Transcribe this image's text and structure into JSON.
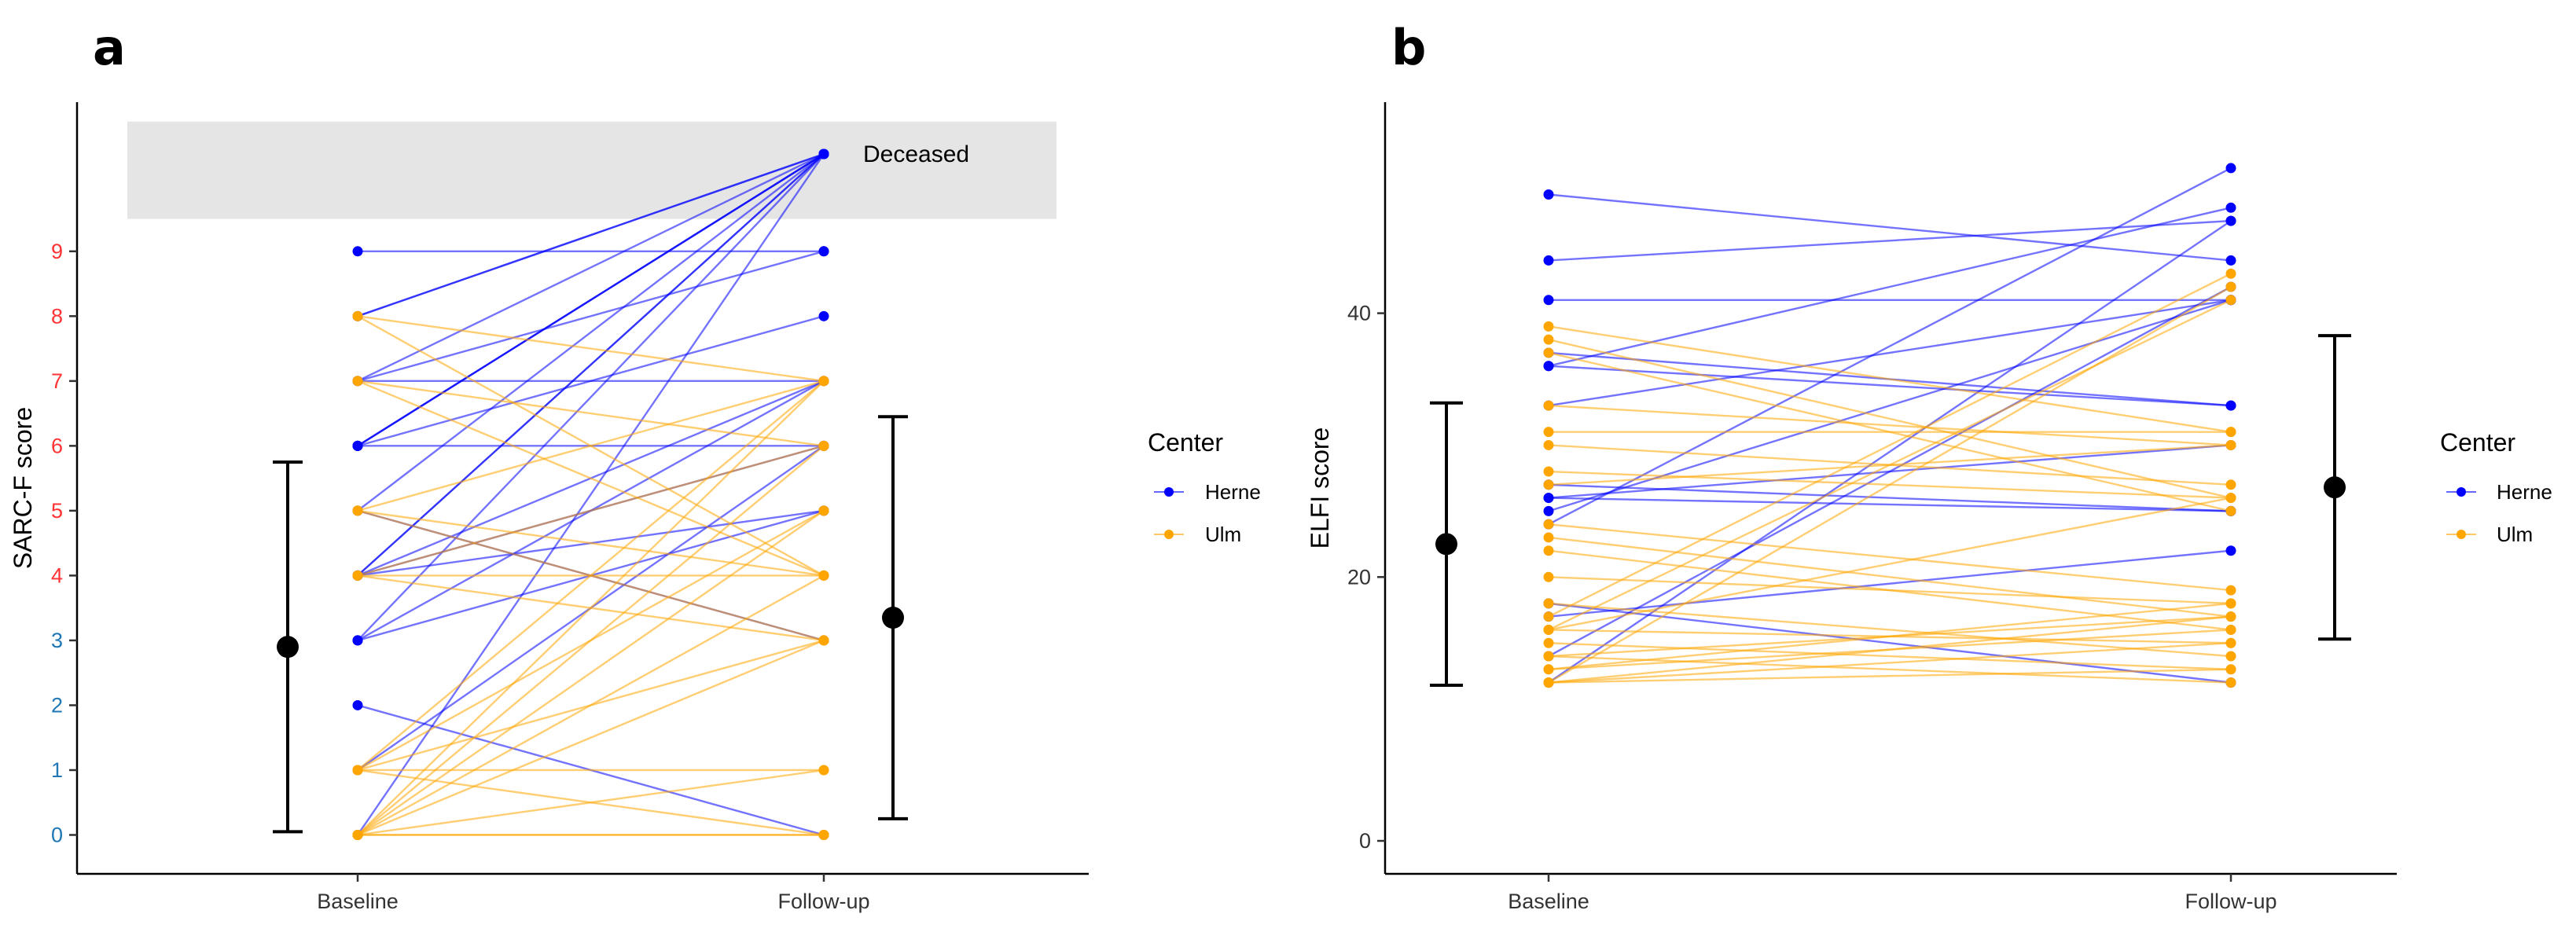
{
  "chart_data": [
    {
      "panel": "a",
      "type": "line",
      "xlabel": "",
      "ylabel": "SARC-F score",
      "categories": [
        "Baseline",
        "Follow-up"
      ],
      "ylim": [
        -0.6,
        11.3
      ],
      "yticks": [
        0,
        1,
        2,
        3,
        4,
        5,
        6,
        7,
        8,
        9
      ],
      "ytick_colors": {
        "0-3": "#1f77b4",
        "4-9": "#ff3333"
      },
      "grid": false,
      "deceased_band": {
        "label": "Deceased",
        "range": [
          9.5,
          11
        ],
        "value": 10.5
      },
      "legend": {
        "title": "Center",
        "position": "right",
        "entries": [
          {
            "name": "Herne",
            "color": "#0000ff"
          },
          {
            "name": "Ulm",
            "color": "#ffa500"
          }
        ]
      },
      "series": [
        {
          "name": "Herne",
          "color": "#0000ff",
          "pairs": [
            [
              9,
              9
            ],
            [
              8,
              10.5
            ],
            [
              8,
              10.5
            ],
            [
              7,
              10.5
            ],
            [
              7,
              7
            ],
            [
              7,
              9
            ],
            [
              6,
              10.5
            ],
            [
              6,
              10.5
            ],
            [
              6,
              6
            ],
            [
              6,
              8
            ],
            [
              6,
              10.5
            ],
            [
              5,
              10.5
            ],
            [
              4,
              10.5
            ],
            [
              4,
              6
            ],
            [
              4,
              5
            ],
            [
              4,
              7
            ],
            [
              3,
              5
            ],
            [
              3,
              7
            ],
            [
              2,
              0
            ],
            [
              1,
              6
            ],
            [
              0,
              10.5
            ],
            [
              5,
              3
            ],
            [
              4,
              10.5
            ],
            [
              3,
              10.5
            ]
          ]
        },
        {
          "name": "Ulm",
          "color": "#ffa500",
          "pairs": [
            [
              8,
              7
            ],
            [
              8,
              4
            ],
            [
              7,
              6
            ],
            [
              7,
              4
            ],
            [
              5,
              7
            ],
            [
              5,
              4
            ],
            [
              4,
              3
            ],
            [
              4,
              6
            ],
            [
              4,
              4
            ],
            [
              1,
              7
            ],
            [
              1,
              3
            ],
            [
              1,
              0
            ],
            [
              1,
              5
            ],
            [
              0,
              5
            ],
            [
              0,
              4
            ],
            [
              0,
              6
            ],
            [
              0,
              3
            ],
            [
              0,
              1
            ],
            [
              0,
              0
            ],
            [
              0,
              0
            ],
            [
              0,
              7
            ],
            [
              5,
              3
            ],
            [
              1,
              1
            ]
          ]
        }
      ],
      "errorbars": [
        {
          "x": "Baseline",
          "mean": 2.9,
          "low": 0.05,
          "high": 5.75
        },
        {
          "x": "Follow-up",
          "mean": 3.35,
          "low": 0.25,
          "high": 6.45
        }
      ]
    },
    {
      "panel": "b",
      "type": "line",
      "xlabel": "",
      "ylabel": "ELFI score",
      "categories": [
        "Baseline",
        "Follow-up"
      ],
      "ylim": [
        -2.5,
        56
      ],
      "yticks": [
        0,
        20,
        40
      ],
      "grid": false,
      "legend": {
        "title": "Center",
        "position": "right",
        "entries": [
          {
            "name": "Herne",
            "color": "#0000ff"
          },
          {
            "name": "Ulm",
            "color": "#ffa500"
          }
        ]
      },
      "series": [
        {
          "name": "Herne",
          "color": "#0000ff",
          "pairs": [
            [
              49,
              44
            ],
            [
              44,
              47
            ],
            [
              41,
              41
            ],
            [
              37,
              33
            ],
            [
              36,
              33
            ],
            [
              36,
              48
            ],
            [
              33,
              41
            ],
            [
              27,
              25
            ],
            [
              26,
              30
            ],
            [
              25,
              41
            ],
            [
              24,
              51
            ],
            [
              18,
              12
            ],
            [
              17,
              22
            ],
            [
              14,
              42
            ],
            [
              12,
              47
            ],
            [
              26,
              25
            ]
          ]
        },
        {
          "name": "Ulm",
          "color": "#ffa500",
          "pairs": [
            [
              39,
              31
            ],
            [
              38,
              26
            ],
            [
              37,
              25
            ],
            [
              33,
              30
            ],
            [
              31,
              31
            ],
            [
              30,
              27
            ],
            [
              28,
              26
            ],
            [
              27,
              30
            ],
            [
              24,
              19
            ],
            [
              23,
              17
            ],
            [
              22,
              16
            ],
            [
              20,
              18
            ],
            [
              18,
              14
            ],
            [
              17,
              43
            ],
            [
              16,
              15
            ],
            [
              16,
              41
            ],
            [
              15,
              13
            ],
            [
              14,
              17
            ],
            [
              14,
              12
            ],
            [
              13,
              16
            ],
            [
              13,
              18
            ],
            [
              12,
              17
            ],
            [
              12,
              13
            ],
            [
              12,
              42
            ],
            [
              12,
              15
            ],
            [
              16,
              26
            ]
          ]
        }
      ],
      "errorbars": [
        {
          "x": "Baseline",
          "mean": 22.5,
          "low": 11.8,
          "high": 33.2
        },
        {
          "x": "Follow-up",
          "mean": 26.8,
          "low": 15.3,
          "high": 38.3
        }
      ]
    }
  ]
}
